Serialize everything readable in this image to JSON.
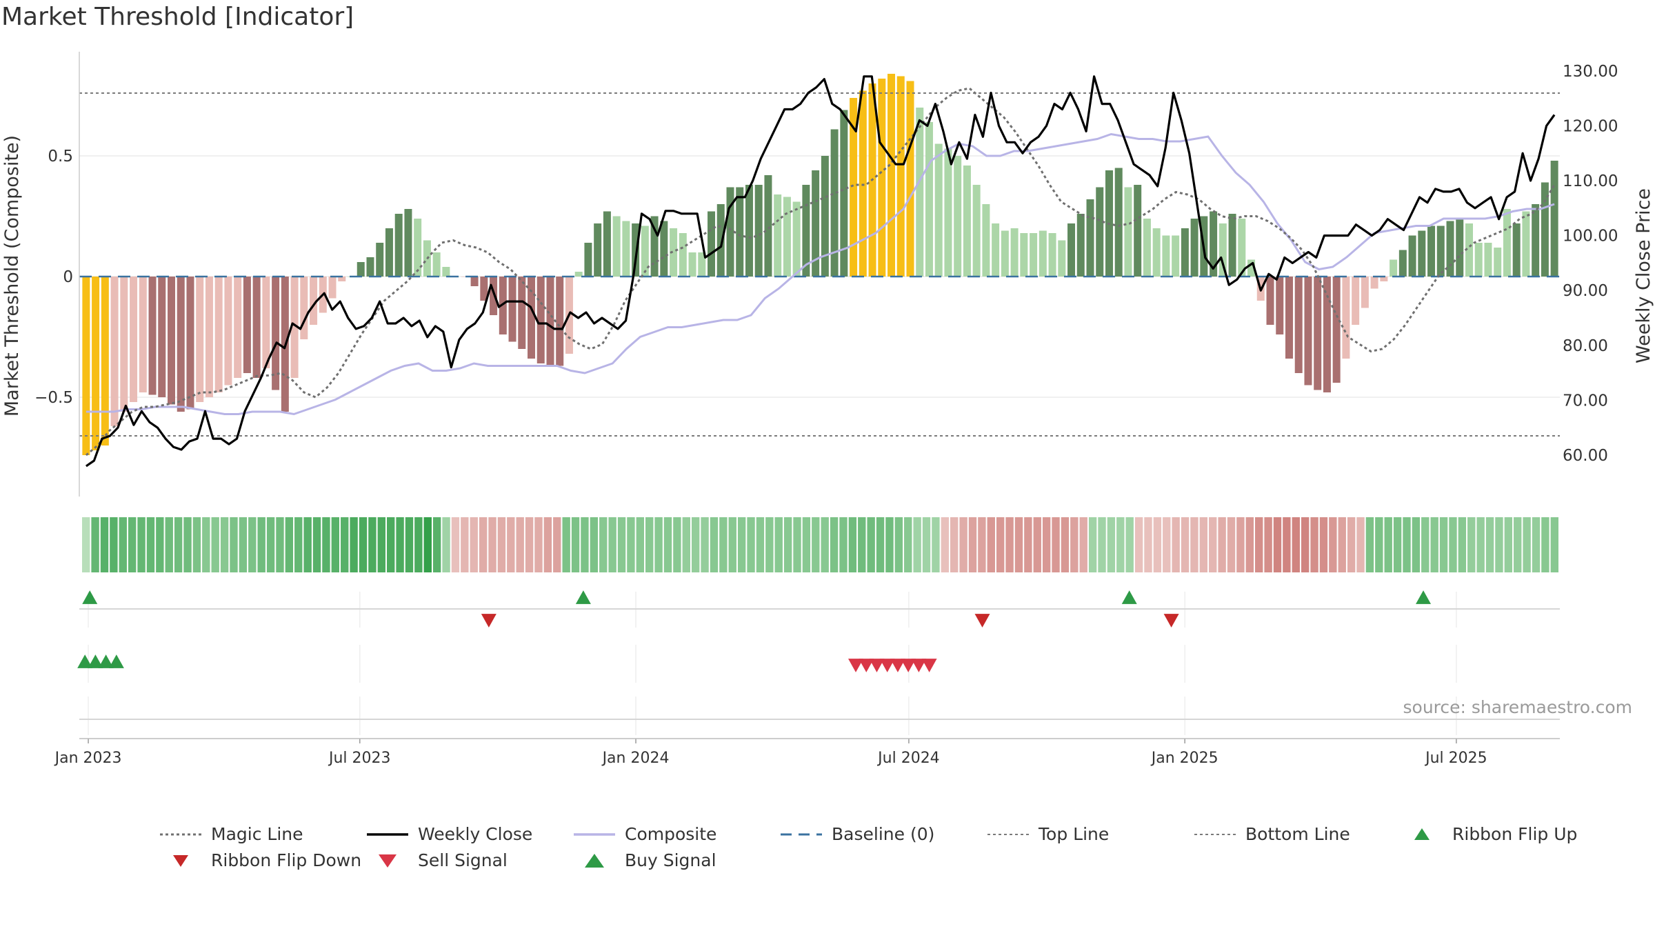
{
  "title": "Market Threshold [Indicator]",
  "source": "source: sharemaestro.com",
  "colors": {
    "gold": "#f7be16",
    "dark_green": "#608a5e",
    "light_green": "#acd6a8",
    "dark_red": "#a97070",
    "light_red": "#e9bcb6",
    "close": "#000000",
    "composite": "#b8b4e6",
    "magic": "#707070",
    "baseline": "#3a72a0",
    "buy": "#2e9a46",
    "sell": "#d93646"
  },
  "chart_data": {
    "type": "bar",
    "left_axis": {
      "label": "Market Threshold (Composite)",
      "ticks": [
        -0.5,
        0,
        0.5
      ],
      "tick_labels": [
        "−0.5",
        "0",
        "0.5"
      ],
      "range": [
        -0.92,
        0.92
      ]
    },
    "right_axis": {
      "label": "Weekly Close Price",
      "ticks": [
        60,
        70,
        80,
        90,
        100,
        110,
        120,
        130
      ],
      "tick_labels": [
        "60.00",
        "70.00",
        "80.00",
        "90.00",
        "100.00",
        "110.00",
        "120.00",
        "130.00"
      ],
      "range": [
        56,
        133
      ]
    },
    "x_range": [
      "2022-12-26",
      "2025-09-08"
    ],
    "x_ticks": [
      {
        "date": "2023-01-01",
        "label": "Jan 2023"
      },
      {
        "date": "2023-07-01",
        "label": "Jul 2023"
      },
      {
        "date": "2024-01-01",
        "label": "Jan 2024"
      },
      {
        "date": "2024-07-01",
        "label": "Jul 2024"
      },
      {
        "date": "2025-01-01",
        "label": "Jan 2025"
      },
      {
        "date": "2025-07-01",
        "label": "Jul 2025"
      }
    ],
    "start_week": "2022-12-27",
    "week_step_days": 7,
    "reference_lines": {
      "top_line": 0.76,
      "bottom_line": -0.66,
      "baseline": 0
    },
    "composite_bars": [
      -0.74,
      -0.72,
      -0.7,
      -0.62,
      -0.56,
      -0.52,
      -0.48,
      -0.49,
      -0.5,
      -0.53,
      -0.56,
      -0.55,
      -0.52,
      -0.5,
      -0.48,
      -0.45,
      -0.42,
      -0.4,
      -0.42,
      -0.38,
      -0.47,
      -0.56,
      -0.42,
      -0.26,
      -0.2,
      -0.15,
      -0.09,
      -0.02,
      0,
      0.06,
      0.08,
      0.14,
      0.2,
      0.26,
      0.28,
      0.24,
      0.15,
      0.1,
      0.04,
      0,
      0,
      -0.04,
      -0.1,
      -0.16,
      -0.24,
      -0.27,
      -0.3,
      -0.34,
      -0.36,
      -0.37,
      -0.37,
      -0.32,
      0.02,
      0.14,
      0.22,
      0.27,
      0.25,
      0.23,
      0.22,
      0.21,
      0.25,
      0.23,
      0.2,
      0.18,
      0.1,
      0.1,
      0.27,
      0.3,
      0.37,
      0.37,
      0.38,
      0.38,
      0.42,
      0.34,
      0.33,
      0.31,
      0.38,
      0.44,
      0.5,
      0.61,
      0.69,
      0.74,
      0.77,
      0.8,
      0.82,
      0.84,
      0.83,
      0.81,
      0.7,
      0.64,
      0.55,
      0.53,
      0.5,
      0.46,
      0.38,
      0.3,
      0.22,
      0.19,
      0.2,
      0.18,
      0.18,
      0.19,
      0.18,
      0.15,
      0.22,
      0.26,
      0.32,
      0.37,
      0.44,
      0.45,
      0.37,
      0.38,
      0.24,
      0.2,
      0.17,
      0.17,
      0.2,
      0.24,
      0.25,
      0.27,
      0.22,
      0.26,
      0.24,
      0.07,
      -0.1,
      -0.2,
      -0.24,
      -0.34,
      -0.4,
      -0.45,
      -0.47,
      -0.48,
      -0.44,
      -0.34,
      -0.2,
      -0.13,
      -0.05,
      -0.02,
      0.07,
      0.11,
      0.17,
      0.19,
      0.21,
      0.21,
      0.23,
      0.24,
      0.22,
      0.14,
      0.14,
      0.12,
      0.28,
      0.22,
      0.27,
      0.3,
      0.39,
      0.48
    ],
    "bar_colors": [
      "gold",
      "gold",
      "gold",
      "lr",
      "lr",
      "lr",
      "lr",
      "dr",
      "dr",
      "dr",
      "dr",
      "dr",
      "lr",
      "lr",
      "lr",
      "lr",
      "lr",
      "dr",
      "dr",
      "lr",
      "dr",
      "dr",
      "lr",
      "lr",
      "lr",
      "lr",
      "lr",
      "lr",
      "lg",
      "dg",
      "dg",
      "dg",
      "dg",
      "dg",
      "dg",
      "lg",
      "lg",
      "lg",
      "lg",
      "lg",
      "lr",
      "dr",
      "dr",
      "dr",
      "dr",
      "dr",
      "dr",
      "dr",
      "dr",
      "dr",
      "dr",
      "lr",
      "lg",
      "dg",
      "dg",
      "dg",
      "lg",
      "lg",
      "dg",
      "lg",
      "dg",
      "dg",
      "lg",
      "lg",
      "lg",
      "lg",
      "dg",
      "dg",
      "dg",
      "dg",
      "dg",
      "dg",
      "dg",
      "lg",
      "lg",
      "lg",
      "dg",
      "dg",
      "dg",
      "dg",
      "dg",
      "gold",
      "gold",
      "gold",
      "gold",
      "gold",
      "gold",
      "gold",
      "lg",
      "lg",
      "lg",
      "lg",
      "lg",
      "lg",
      "lg",
      "lg",
      "lg",
      "lg",
      "lg",
      "lg",
      "lg",
      "lg",
      "lg",
      "lg",
      "dg",
      "dg",
      "dg",
      "dg",
      "dg",
      "dg",
      "lg",
      "dg",
      "lg",
      "lg",
      "lg",
      "lg",
      "dg",
      "dg",
      "dg",
      "dg",
      "lg",
      "dg",
      "lg",
      "lg",
      "lr",
      "dr",
      "dr",
      "dr",
      "dr",
      "dr",
      "dr",
      "dr",
      "dr",
      "lr",
      "lr",
      "lr",
      "lr",
      "lr",
      "lg",
      "dg",
      "dg",
      "dg",
      "dg",
      "dg",
      "dg",
      "dg",
      "lg",
      "lg",
      "lg",
      "lg",
      "lg",
      "dg",
      "lg",
      "dg",
      "dg",
      "dg"
    ],
    "weekly_close": [
      58,
      59,
      63,
      63.5,
      65,
      69,
      65.5,
      68,
      66,
      65,
      63,
      61.5,
      61,
      62.5,
      63,
      68,
      63,
      63,
      62,
      63,
      68,
      71,
      74,
      77.5,
      80.5,
      79.5,
      84,
      83,
      86,
      88,
      89.5,
      86.5,
      88,
      85,
      83,
      83.5,
      85,
      88,
      84,
      84,
      85,
      83.5,
      84.5,
      81.5,
      83.5,
      82.5,
      76,
      81,
      83,
      84,
      86,
      91,
      87,
      88,
      88,
      88,
      87,
      84,
      84,
      83,
      83,
      86,
      85,
      86,
      84,
      85,
      84,
      83,
      84.5,
      93,
      104,
      103,
      100,
      104.5,
      104.5,
      104,
      104,
      104,
      96,
      97,
      98,
      105,
      107,
      107,
      110,
      114,
      117,
      120,
      123,
      123,
      124,
      126,
      127,
      128.5,
      124,
      123,
      121,
      119,
      129,
      129,
      117,
      115,
      113,
      113,
      117,
      121,
      120,
      124,
      119,
      113,
      117,
      114,
      122,
      118,
      126,
      120,
      117,
      117,
      115,
      117,
      118,
      120,
      124,
      123,
      126,
      123,
      119,
      129,
      124,
      124,
      121,
      117,
      113,
      112,
      111,
      109,
      116,
      126,
      121,
      115,
      105.5,
      96,
      94,
      96,
      91,
      92,
      94,
      95,
      90,
      93,
      92,
      96,
      95,
      96,
      97,
      96,
      100,
      100,
      100,
      100,
      102,
      101,
      100,
      101,
      103,
      102,
      101,
      104,
      107,
      106,
      108.5,
      108,
      108,
      108.5,
      106,
      105,
      106,
      107,
      103,
      107,
      108,
      115,
      110,
      114,
      120,
      122
    ],
    "weekly_close_dates_note": "price series uses more points than bars; spread evenly over bar span",
    "composite_line": [
      -0.56,
      -0.56,
      -0.56,
      -0.55,
      -0.55,
      -0.54,
      -0.54,
      -0.54,
      -0.55,
      -0.56,
      -0.57,
      -0.57,
      -0.56,
      -0.56,
      -0.56,
      -0.57,
      -0.55,
      -0.53,
      -0.51,
      -0.48,
      -0.45,
      -0.42,
      -0.39,
      -0.37,
      -0.36,
      -0.39,
      -0.39,
      -0.38,
      -0.36,
      -0.37,
      -0.37,
      -0.37,
      -0.37,
      -0.37,
      -0.37,
      -0.39,
      -0.4,
      -0.38,
      -0.36,
      -0.3,
      -0.25,
      -0.23,
      -0.21,
      -0.21,
      -0.2,
      -0.19,
      -0.18,
      -0.18,
      -0.16,
      -0.09,
      -0.05,
      0,
      0.05,
      0.08,
      0.1,
      0.12,
      0.15,
      0.18,
      0.23,
      0.28,
      0.38,
      0.48,
      0.52,
      0.55,
      0.54,
      0.5,
      0.5,
      0.52,
      0.52,
      0.53,
      0.54,
      0.55,
      0.56,
      0.57,
      0.59,
      0.58,
      0.57,
      0.57,
      0.56,
      0.56,
      0.57,
      0.58,
      0.5,
      0.43,
      0.38,
      0.31,
      0.22,
      0.15,
      0.06,
      0.03,
      0.04,
      0.08,
      0.13,
      0.18,
      0.19,
      0.2,
      0.21,
      0.21,
      0.24,
      0.24,
      0.24,
      0.24,
      0.25,
      0.27,
      0.28,
      0.28,
      0.3
    ],
    "magic_line": [
      -0.74,
      -0.7,
      -0.64,
      -0.6,
      -0.56,
      -0.54,
      -0.54,
      -0.53,
      -0.52,
      -0.5,
      -0.48,
      -0.48,
      -0.47,
      -0.45,
      -0.43,
      -0.41,
      -0.41,
      -0.4,
      -0.43,
      -0.48,
      -0.5,
      -0.46,
      -0.4,
      -0.32,
      -0.24,
      -0.17,
      -0.1,
      -0.06,
      -0.02,
      0.03,
      0.09,
      0.14,
      0.15,
      0.13,
      0.12,
      0.1,
      0.06,
      0.03,
      -0.02,
      -0.07,
      -0.13,
      -0.19,
      -0.25,
      -0.28,
      -0.3,
      -0.28,
      -0.2,
      -0.1,
      -0.03,
      0.04,
      0.07,
      0.1,
      0.12,
      0.15,
      0.18,
      0.21,
      0.2,
      0.17,
      0.16,
      0.18,
      0.22,
      0.26,
      0.28,
      0.3,
      0.32,
      0.34,
      0.36,
      0.38,
      0.38,
      0.42,
      0.46,
      0.52,
      0.58,
      0.64,
      0.7,
      0.74,
      0.77,
      0.78,
      0.74,
      0.7,
      0.66,
      0.6,
      0.53,
      0.46,
      0.38,
      0.31,
      0.28,
      0.25,
      0.24,
      0.22,
      0.21,
      0.22,
      0.25,
      0.28,
      0.32,
      0.35,
      0.34,
      0.32,
      0.28,
      0.25,
      0.24,
      0.25,
      0.25,
      0.23,
      0.2,
      0.16,
      0.11,
      0.04,
      -0.06,
      -0.16,
      -0.25,
      -0.28,
      -0.31,
      -0.3,
      -0.26,
      -0.2,
      -0.13,
      -0.06,
      0.01,
      0.05,
      0.1,
      0.14,
      0.16,
      0.18,
      0.2,
      0.24,
      0.26,
      0.3,
      0.38
    ],
    "ribbon": [
      0.1,
      0.8,
      0.9,
      0.9,
      0.8,
      0.8,
      0.8,
      0.8,
      0.8,
      0.7,
      0.7,
      0.7,
      0.6,
      0.5,
      0.5,
      0.5,
      0.6,
      0.6,
      0.6,
      0.7,
      0.7,
      0.7,
      0.8,
      0.8,
      0.9,
      0.9,
      0.9,
      0.9,
      0.9,
      1,
      1,
      1,
      1,
      1,
      1,
      1,
      1,
      1.2,
      0.9,
      0.3,
      -0.2,
      -0.3,
      -0.3,
      -0.4,
      -0.4,
      -0.4,
      -0.4,
      -0.4,
      -0.4,
      -0.4,
      -0.5,
      -0.5,
      0.6,
      0.6,
      0.6,
      0.6,
      0.5,
      0.5,
      0.5,
      0.5,
      0.5,
      0.5,
      0.5,
      0.5,
      0.5,
      0.4,
      0.4,
      0.4,
      0.5,
      0.5,
      0.5,
      0.5,
      0.5,
      0.5,
      0.5,
      0.5,
      0.5,
      0.5,
      0.5,
      0.5,
      0.5,
      0.6,
      0.6,
      0.7,
      0.7,
      0.7,
      0.7,
      0.7,
      0.6,
      0.5,
      0.3,
      0.3,
      0.3,
      -0.2,
      -0.3,
      -0.4,
      -0.5,
      -0.5,
      -0.6,
      -0.6,
      -0.6,
      -0.6,
      -0.6,
      -0.6,
      -0.6,
      -0.6,
      -0.6,
      -0.5,
      -0.4,
      0.3,
      0.3,
      0.3,
      0.3,
      0.3,
      -0.2,
      -0.2,
      -0.2,
      -0.2,
      -0.3,
      -0.3,
      -0.3,
      -0.3,
      -0.3,
      -0.4,
      -0.4,
      -0.5,
      -0.6,
      -0.7,
      -0.7,
      -0.8,
      -0.8,
      -0.8,
      -0.8,
      -0.7,
      -0.7,
      -0.6,
      -0.5,
      -0.4,
      -0.3,
      0.6,
      0.6,
      0.6,
      0.6,
      0.6,
      0.6,
      0.5,
      0.5,
      0.5,
      0.5,
      0.5,
      0.4,
      0.4,
      0.4,
      0.4,
      0.4,
      0.4,
      0.4,
      0.4,
      0.5,
      0.5
    ],
    "ribbon_flip_up": [
      "2023-01-02",
      "2023-11-27",
      "2024-11-25",
      "2025-06-09"
    ],
    "ribbon_flip_down": [
      "2023-09-25",
      "2024-08-19",
      "2024-12-23"
    ],
    "buy_signals": [
      "2022-12-27",
      "2023-01-03",
      "2023-01-10",
      "2023-01-17"
    ],
    "sell_signals": [
      "2024-06-03",
      "2024-06-10",
      "2024-06-17",
      "2024-06-24",
      "2024-07-01",
      "2024-07-08",
      "2024-07-15",
      "2024-07-22"
    ],
    "legend": [
      {
        "key": "magic",
        "label": "Magic Line"
      },
      {
        "key": "close",
        "label": "Weekly Close"
      },
      {
        "key": "composite",
        "label": "Composite"
      },
      {
        "key": "baseline",
        "label": "Baseline (0)"
      },
      {
        "key": "top",
        "label": "Top Line"
      },
      {
        "key": "bottom",
        "label": "Bottom Line"
      },
      {
        "key": "flipup",
        "label": "Ribbon Flip Up"
      },
      {
        "key": "flipdown",
        "label": "Ribbon Flip Down"
      },
      {
        "key": "sell",
        "label": "Sell Signal"
      },
      {
        "key": "buy",
        "label": "Buy Signal"
      }
    ]
  }
}
